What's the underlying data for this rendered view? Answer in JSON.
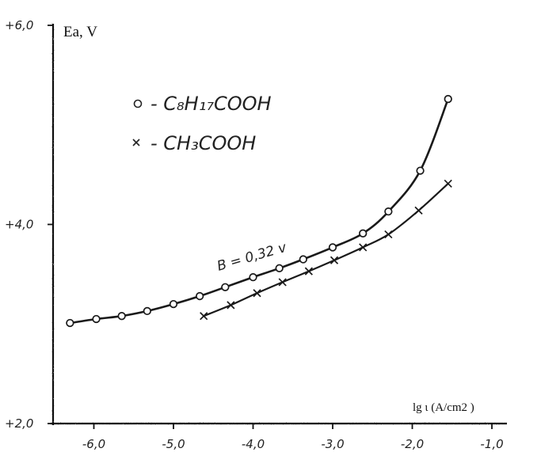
{
  "chart_data": {
    "type": "line",
    "title": "",
    "xlabel": "lg ι  (A/cm2 )",
    "ylabel": "Ea, V",
    "xlim": [
      -6.5,
      -1.0
    ],
    "ylim": [
      2.0,
      6.0
    ],
    "x_ticks": [
      -6.0,
      -5.0,
      -4.0,
      -3.0,
      -2.0,
      -1.0
    ],
    "x_tick_labels": [
      "-6,0",
      "-5,0",
      "-4,0",
      "-3,0",
      "-2,0",
      "-1,0"
    ],
    "y_ticks": [
      2.0,
      4.0,
      6.0
    ],
    "y_tick_labels": [
      "+2,0",
      "+4,0",
      "+6,0"
    ],
    "grid": false,
    "legend_position": "top-left",
    "series": [
      {
        "name": "C8H17COOH",
        "legend_label": "- C₈H₁₇COOH",
        "marker": "circle",
        "x": [
          -6.3,
          -5.97,
          -5.65,
          -5.33,
          -5.0,
          -4.67,
          -4.35,
          -4.0,
          -3.67,
          -3.37,
          -3.0,
          -2.62,
          -2.3,
          -1.9,
          -1.55
        ],
        "y": [
          3.01,
          3.05,
          3.08,
          3.13,
          3.2,
          3.28,
          3.37,
          3.47,
          3.56,
          3.65,
          3.77,
          3.91,
          4.13,
          4.54,
          5.26
        ]
      },
      {
        "name": "CH3COOH",
        "legend_label": "- CH₃COOH",
        "marker": "x",
        "x": [
          -4.62,
          -4.28,
          -3.95,
          -3.63,
          -3.3,
          -2.98,
          -2.62,
          -2.3,
          -1.92,
          -1.55
        ],
        "y": [
          3.08,
          3.19,
          3.31,
          3.42,
          3.53,
          3.64,
          3.77,
          3.9,
          4.14,
          4.41
        ]
      }
    ],
    "annotations": [
      {
        "text": "B = 0,32 v"
      }
    ]
  }
}
